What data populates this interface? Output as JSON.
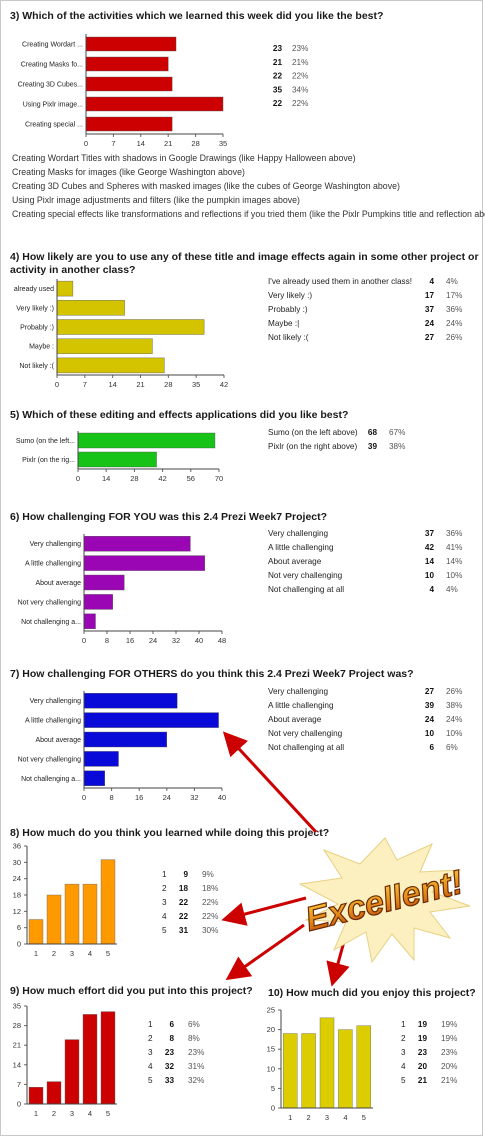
{
  "colors": {
    "q3": "#cc0000",
    "q4": "#d4c400",
    "q5": "#16c316",
    "q6": "#9a06b3",
    "q7": "#0a0ad8",
    "q8": "#ff9900",
    "q9": "#cc0000",
    "q10": "#dccd00",
    "arrow": "#cc0000"
  },
  "q3": {
    "title": "3) Which of the activities which we learned this week did you like the best?",
    "descriptions": [
      "Creating Wordart Titles with shadows in Google Drawings (like Happy Halloween above)",
      "Creating Masks for images (like George Washington above)",
      "Creating 3D Cubes and Spheres with masked images (like the cubes of George Washington above)",
      "Using Pixlr image adjustments and filters (like the pumpkin images above)",
      "Creating special effects like transformations and reflections if you tried them (like the Pixlr Pumpkins title and reflection above)"
    ]
  },
  "q4": {
    "title": "4) How likely are you to use any of these title and image effects again in some other project or activity in another class?"
  },
  "q5": {
    "title": "5) Which of these editing and effects applications did you like best?"
  },
  "q6": {
    "title": "6) How challenging FOR YOU was this 2.4 Prezi Week7 Project?"
  },
  "q7": {
    "title": "7) How challenging FOR OTHERS do you think this 2.4 Prezi Week7 Project was?"
  },
  "q8": {
    "title": "8) How much do you think you learned while doing this project?"
  },
  "q9": {
    "title": "9) How much effort did you put into this project?"
  },
  "q10": {
    "title": "10) How much did you enjoy this project?"
  },
  "badge": {
    "text": "Excellent!"
  },
  "chart_data": [
    {
      "id": "q3",
      "type": "bar",
      "orientation": "horizontal",
      "categories": [
        "Creating Wordart ...",
        "Creating Masks fo...",
        "Creating 3D Cubes...",
        "Using Pixlr image...",
        "Creating special ..."
      ],
      "values": [
        23,
        21,
        22,
        35,
        22
      ],
      "legend": [
        {
          "label": "",
          "count": "23",
          "percent": "23%"
        },
        {
          "label": "",
          "count": "21",
          "percent": "21%"
        },
        {
          "label": "",
          "count": "22",
          "percent": "22%"
        },
        {
          "label": "",
          "count": "35",
          "percent": "34%"
        },
        {
          "label": "",
          "count": "22",
          "percent": "22%"
        }
      ],
      "ticks": [
        "0",
        "7",
        "14",
        "21",
        "28",
        "35"
      ],
      "xlim": [
        0,
        35
      ]
    },
    {
      "id": "q4",
      "type": "bar",
      "orientation": "horizontal",
      "categories": [
        "already used",
        "Very likely :)",
        "Probably :)",
        "Maybe  :",
        "Not likely :("
      ],
      "values": [
        4,
        17,
        37,
        24,
        27
      ],
      "legend": [
        {
          "label": "I've already used them in another class!",
          "count": "4",
          "percent": "4%"
        },
        {
          "label": "Very likely :)",
          "count": "17",
          "percent": "17%"
        },
        {
          "label": "Probably :)",
          "count": "37",
          "percent": "36%"
        },
        {
          "label": "Maybe  :|",
          "count": "24",
          "percent": "24%"
        },
        {
          "label": "Not likely :(",
          "count": "27",
          "percent": "26%"
        }
      ],
      "ticks": [
        "0",
        "7",
        "14",
        "21",
        "28",
        "35",
        "42"
      ],
      "xlim": [
        0,
        42
      ]
    },
    {
      "id": "q5",
      "type": "bar",
      "orientation": "horizontal",
      "categories": [
        "Sumo (on the left...",
        "Pixlr (on the rig..."
      ],
      "values": [
        68,
        39
      ],
      "legend": [
        {
          "label": "Sumo (on the left above)",
          "count": "68",
          "percent": "67%"
        },
        {
          "label": "Pixlr (on the right above)",
          "count": "39",
          "percent": "38%"
        }
      ],
      "ticks": [
        "0",
        "14",
        "28",
        "42",
        "56",
        "70"
      ],
      "xlim": [
        0,
        70
      ]
    },
    {
      "id": "q6",
      "type": "bar",
      "orientation": "horizontal",
      "categories": [
        "Very challenging",
        "A little challenging",
        "About average",
        "Not very challenging",
        "Not challenging a..."
      ],
      "values": [
        37,
        42,
        14,
        10,
        4
      ],
      "legend": [
        {
          "label": "Very challenging",
          "count": "37",
          "percent": "36%"
        },
        {
          "label": "A little challenging",
          "count": "42",
          "percent": "41%"
        },
        {
          "label": "About average",
          "count": "14",
          "percent": "14%"
        },
        {
          "label": "Not very challenging",
          "count": "10",
          "percent": "10%"
        },
        {
          "label": "Not challenging at all",
          "count": "4",
          "percent": "4%"
        }
      ],
      "ticks": [
        "0",
        "8",
        "16",
        "24",
        "32",
        "40",
        "48"
      ],
      "xlim": [
        0,
        48
      ]
    },
    {
      "id": "q7",
      "type": "bar",
      "orientation": "horizontal",
      "categories": [
        "Very challenging",
        "A little challenging",
        "About average",
        "Not very challenging",
        "Not challenging a..."
      ],
      "values": [
        27,
        39,
        24,
        10,
        6
      ],
      "legend": [
        {
          "label": "Very challenging",
          "count": "27",
          "percent": "26%"
        },
        {
          "label": "A little challenging",
          "count": "39",
          "percent": "38%"
        },
        {
          "label": "About average",
          "count": "24",
          "percent": "24%"
        },
        {
          "label": "Not very challenging",
          "count": "10",
          "percent": "10%"
        },
        {
          "label": "Not challenging at all",
          "count": "6",
          "percent": "6%"
        }
      ],
      "ticks": [
        "0",
        "8",
        "16",
        "24",
        "32",
        "40"
      ],
      "xlim": [
        0,
        40
      ]
    },
    {
      "id": "q8",
      "type": "bar",
      "orientation": "vertical",
      "categories": [
        "1",
        "2",
        "3",
        "4",
        "5"
      ],
      "values": [
        9,
        18,
        22,
        22,
        31
      ],
      "legend": [
        {
          "label": "1",
          "count": "9",
          "percent": "9%"
        },
        {
          "label": "2",
          "count": "18",
          "percent": "18%"
        },
        {
          "label": "3",
          "count": "22",
          "percent": "22%"
        },
        {
          "label": "4",
          "count": "22",
          "percent": "22%"
        },
        {
          "label": "5",
          "count": "31",
          "percent": "30%"
        }
      ],
      "ticks": [
        "0",
        "6",
        "12",
        "18",
        "24",
        "30",
        "36"
      ],
      "ylim": [
        0,
        36
      ]
    },
    {
      "id": "q9",
      "type": "bar",
      "orientation": "vertical",
      "categories": [
        "1",
        "2",
        "3",
        "4",
        "5"
      ],
      "values": [
        6,
        8,
        23,
        32,
        33
      ],
      "legend": [
        {
          "label": "1",
          "count": "6",
          "percent": "6%"
        },
        {
          "label": "2",
          "count": "8",
          "percent": "8%"
        },
        {
          "label": "3",
          "count": "23",
          "percent": "23%"
        },
        {
          "label": "4",
          "count": "32",
          "percent": "31%"
        },
        {
          "label": "5",
          "count": "33",
          "percent": "32%"
        }
      ],
      "ticks": [
        "0",
        "7",
        "14",
        "21",
        "28",
        "35"
      ],
      "ylim": [
        0,
        35
      ]
    },
    {
      "id": "q10",
      "type": "bar",
      "orientation": "vertical",
      "categories": [
        "1",
        "2",
        "3",
        "4",
        "5"
      ],
      "values": [
        19,
        19,
        23,
        20,
        21
      ],
      "legend": [
        {
          "label": "1",
          "count": "19",
          "percent": "19%"
        },
        {
          "label": "2",
          "count": "19",
          "percent": "19%"
        },
        {
          "label": "3",
          "count": "23",
          "percent": "23%"
        },
        {
          "label": "4",
          "count": "20",
          "percent": "20%"
        },
        {
          "label": "5",
          "count": "21",
          "percent": "21%"
        }
      ],
      "ticks": [
        "0",
        "5",
        "10",
        "15",
        "20",
        "25"
      ],
      "ylim": [
        0,
        25
      ]
    }
  ]
}
